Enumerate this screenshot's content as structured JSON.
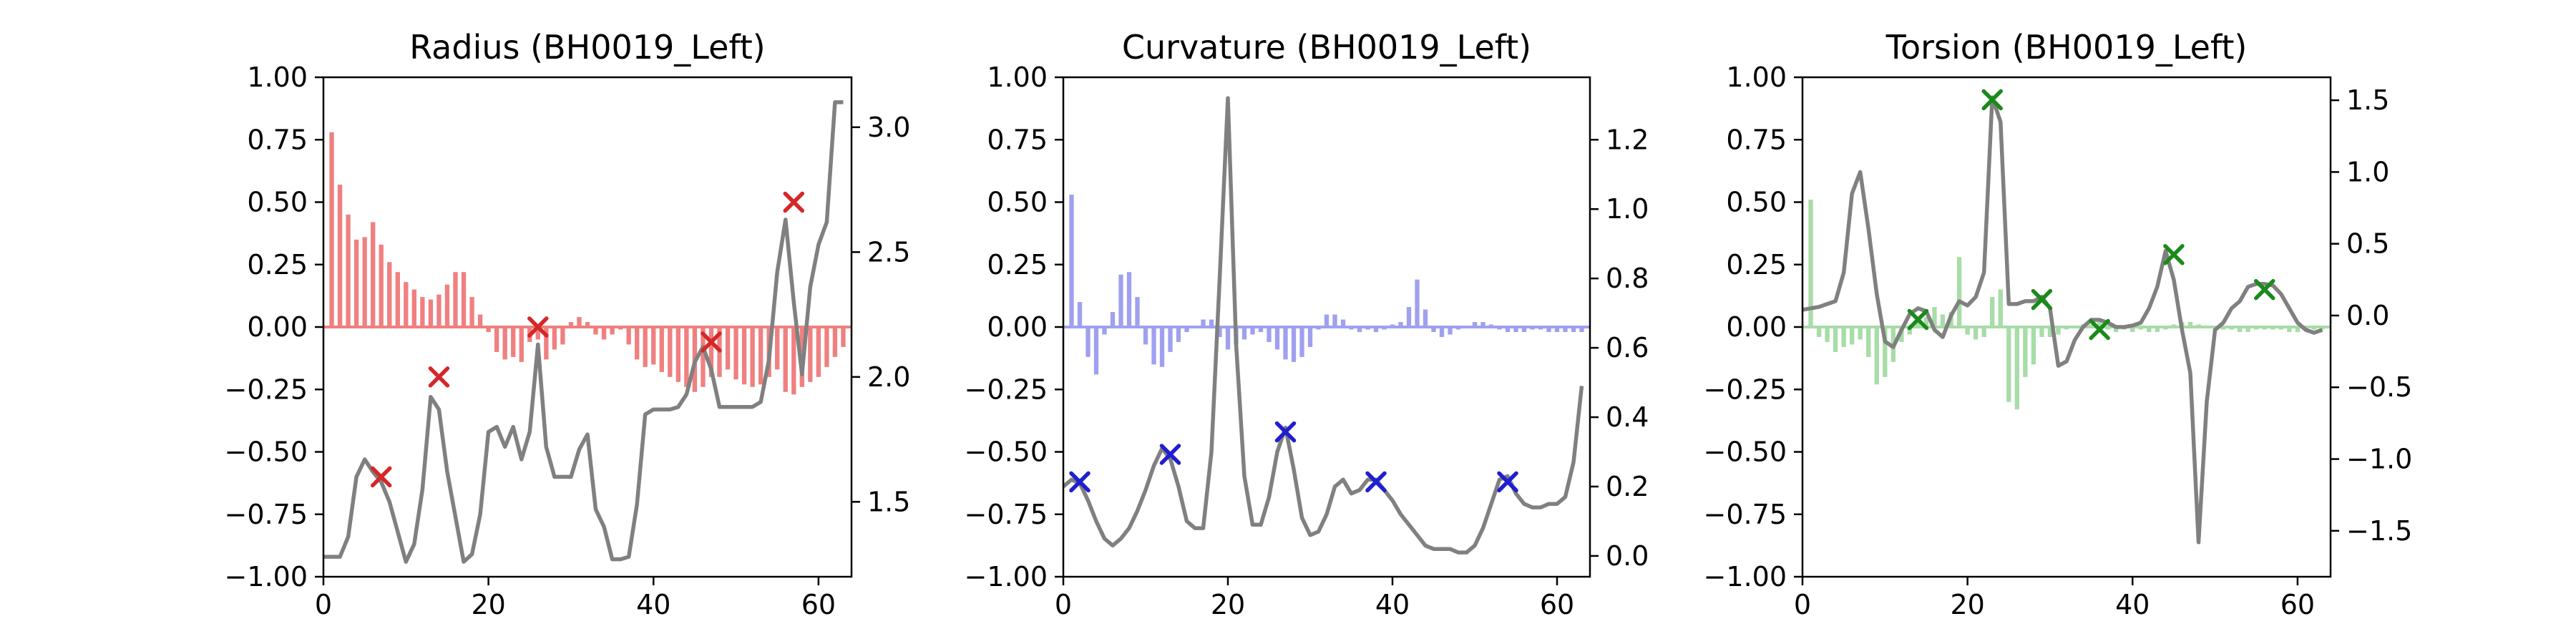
{
  "chart_data": [
    {
      "type": "bar",
      "title": "Radius (BH0019_Left)",
      "xlabel": "",
      "ylabel": "",
      "xlim": [
        0,
        64
      ],
      "ylim": [
        -1,
        1
      ],
      "y2lim": [
        1.2,
        3.2
      ],
      "grid": false,
      "x_ticks": [
        0,
        20,
        40,
        60
      ],
      "y_ticks": [
        -1.0,
        -0.75,
        -0.5,
        -0.25,
        0.0,
        0.25,
        0.5,
        0.75,
        1.0
      ],
      "y_tick_labels": [
        "−1.00",
        "−0.75",
        "−0.50",
        "−0.25",
        "0.00",
        "0.25",
        "0.50",
        "0.75",
        "1.00"
      ],
      "y2_ticks": [
        1.5,
        2.0,
        2.5,
        3.0
      ],
      "y2_tick_labels": [
        "1.5",
        "2.0",
        "2.5",
        "3.0"
      ],
      "bar_color": "#f08080",
      "bars": {
        "x": [
          1,
          2,
          3,
          4,
          5,
          6,
          7,
          8,
          9,
          10,
          11,
          12,
          13,
          14,
          15,
          16,
          17,
          18,
          19,
          20,
          21,
          22,
          23,
          24,
          25,
          26,
          27,
          28,
          29,
          30,
          31,
          32,
          33,
          34,
          35,
          36,
          37,
          38,
          39,
          40,
          41,
          42,
          43,
          44,
          45,
          46,
          47,
          48,
          49,
          50,
          51,
          52,
          53,
          54,
          55,
          56,
          57,
          58,
          59,
          60,
          61,
          62,
          63
        ],
        "values": [
          0.78,
          0.57,
          0.45,
          0.35,
          0.36,
          0.42,
          0.33,
          0.26,
          0.22,
          0.18,
          0.15,
          0.12,
          0.11,
          0.13,
          0.17,
          0.22,
          0.22,
          0.12,
          0.05,
          -0.02,
          -0.1,
          -0.13,
          -0.12,
          -0.14,
          -0.06,
          -0.05,
          -0.13,
          -0.09,
          -0.07,
          0.02,
          0.04,
          0.02,
          -0.03,
          -0.05,
          -0.03,
          -0.01,
          -0.07,
          -0.13,
          -0.16,
          -0.15,
          -0.18,
          -0.2,
          -0.22,
          -0.24,
          -0.26,
          -0.24,
          -0.2,
          -0.2,
          -0.17,
          -0.21,
          -0.23,
          -0.24,
          -0.23,
          -0.2,
          -0.17,
          -0.26,
          -0.27,
          -0.24,
          -0.22,
          -0.2,
          -0.16,
          -0.12,
          -0.08
        ]
      },
      "line_color": "#808080",
      "line": {
        "x": [
          0,
          1,
          2,
          3,
          4,
          5,
          6,
          7,
          8,
          9,
          10,
          11,
          12,
          13,
          14,
          15,
          16,
          17,
          18,
          19,
          20,
          21,
          22,
          23,
          24,
          25,
          26,
          27,
          28,
          29,
          30,
          31,
          32,
          33,
          34,
          35,
          36,
          37,
          38,
          39,
          40,
          41,
          42,
          43,
          44,
          45,
          46,
          47,
          48,
          49,
          50,
          51,
          52,
          53,
          54,
          55,
          56,
          57,
          58,
          59,
          60,
          61,
          62,
          63
        ],
        "y": [
          1.28,
          1.28,
          1.28,
          1.36,
          1.6,
          1.67,
          1.62,
          1.58,
          1.5,
          1.38,
          1.26,
          1.33,
          1.55,
          1.92,
          1.87,
          1.62,
          1.44,
          1.26,
          1.29,
          1.45,
          1.78,
          1.8,
          1.72,
          1.8,
          1.67,
          1.78,
          2.13,
          1.72,
          1.6,
          1.6,
          1.6,
          1.71,
          1.77,
          1.47,
          1.4,
          1.27,
          1.27,
          1.28,
          1.49,
          1.85,
          1.87,
          1.87,
          1.87,
          1.88,
          1.93,
          2.06,
          2.12,
          2.03,
          1.88,
          1.88,
          1.88,
          1.88,
          1.88,
          1.9,
          2.07,
          2.42,
          2.63,
          2.3,
          2.01,
          2.36,
          2.53,
          2.62,
          3.1,
          3.1
        ]
      },
      "markers": {
        "color": "#d62728",
        "x": [
          7,
          14,
          26,
          47,
          57
        ],
        "y": [
          -0.6,
          -0.2,
          0.0,
          -0.06,
          0.5
        ]
      }
    },
    {
      "type": "bar",
      "title": "Curvature (BH0019_Left)",
      "xlabel": "",
      "ylabel": "",
      "xlim": [
        0,
        64
      ],
      "ylim": [
        -1,
        1
      ],
      "y2lim": [
        -0.06,
        1.38
      ],
      "grid": false,
      "x_ticks": [
        0,
        20,
        40,
        60
      ],
      "y_ticks": [
        -1.0,
        -0.75,
        -0.5,
        -0.25,
        0.0,
        0.25,
        0.5,
        0.75,
        1.0
      ],
      "y_tick_labels": [
        "−1.00",
        "−0.75",
        "−0.50",
        "−0.25",
        "0.00",
        "0.25",
        "0.50",
        "0.75",
        "1.00"
      ],
      "y2_ticks": [
        0.0,
        0.2,
        0.4,
        0.6,
        0.8,
        1.0,
        1.2
      ],
      "y2_tick_labels": [
        "0.0",
        "0.2",
        "0.4",
        "0.6",
        "0.8",
        "1.0",
        "1.2"
      ],
      "bar_color": "#a0a0f0",
      "bars": {
        "x": [
          1,
          2,
          3,
          4,
          5,
          6,
          7,
          8,
          9,
          10,
          11,
          12,
          13,
          14,
          15,
          16,
          17,
          18,
          19,
          20,
          21,
          22,
          23,
          24,
          25,
          26,
          27,
          28,
          29,
          30,
          31,
          32,
          33,
          34,
          35,
          36,
          37,
          38,
          39,
          40,
          41,
          42,
          43,
          44,
          45,
          46,
          47,
          48,
          49,
          50,
          51,
          52,
          53,
          54,
          55,
          56,
          57,
          58,
          59,
          60,
          61,
          62,
          63
        ],
        "values": [
          0.53,
          0.1,
          -0.12,
          -0.19,
          -0.03,
          0.06,
          0.21,
          0.22,
          0.12,
          -0.07,
          -0.15,
          -0.16,
          -0.1,
          -0.06,
          -0.02,
          0.0,
          0.03,
          0.03,
          -0.04,
          -0.09,
          -0.07,
          -0.05,
          -0.03,
          -0.02,
          -0.06,
          -0.09,
          -0.13,
          -0.14,
          -0.12,
          -0.08,
          -0.01,
          0.05,
          0.05,
          0.03,
          -0.01,
          -0.02,
          -0.01,
          -0.02,
          -0.01,
          0.01,
          0.02,
          0.08,
          0.19,
          0.07,
          -0.02,
          -0.04,
          -0.03,
          -0.01,
          0.0,
          0.02,
          0.02,
          0.01,
          -0.01,
          -0.02,
          -0.02,
          -0.02,
          -0.01,
          -0.01,
          -0.02,
          -0.02,
          -0.02,
          -0.02,
          -0.02
        ]
      },
      "line_color": "#808080",
      "line": {
        "x": [
          0,
          1,
          2,
          3,
          4,
          5,
          6,
          7,
          8,
          9,
          10,
          11,
          12,
          13,
          14,
          15,
          16,
          17,
          18,
          19,
          20,
          21,
          22,
          23,
          24,
          25,
          26,
          27,
          28,
          29,
          30,
          31,
          32,
          33,
          34,
          35,
          36,
          37,
          38,
          39,
          40,
          41,
          42,
          43,
          44,
          45,
          46,
          47,
          48,
          49,
          50,
          51,
          52,
          53,
          54,
          55,
          56,
          57,
          58,
          59,
          60,
          61,
          62,
          63
        ],
        "y": [
          0.2,
          0.22,
          0.21,
          0.16,
          0.1,
          0.05,
          0.03,
          0.05,
          0.08,
          0.13,
          0.19,
          0.26,
          0.31,
          0.28,
          0.2,
          0.1,
          0.08,
          0.08,
          0.3,
          0.8,
          1.32,
          0.61,
          0.23,
          0.09,
          0.09,
          0.17,
          0.3,
          0.37,
          0.25,
          0.11,
          0.06,
          0.07,
          0.12,
          0.2,
          0.22,
          0.18,
          0.19,
          0.22,
          0.22,
          0.19,
          0.16,
          0.12,
          0.09,
          0.06,
          0.03,
          0.02,
          0.02,
          0.02,
          0.01,
          0.01,
          0.03,
          0.08,
          0.15,
          0.22,
          0.23,
          0.18,
          0.15,
          0.14,
          0.14,
          0.15,
          0.15,
          0.17,
          0.27,
          0.49
        ]
      },
      "markers": {
        "color": "#1f1fd0",
        "x": [
          2,
          13,
          27,
          38,
          54
        ],
        "y": [
          -0.62,
          -0.51,
          -0.42,
          -0.62,
          -0.62
        ]
      }
    },
    {
      "type": "bar",
      "title": "Torsion (BH0019_Left)",
      "xlabel": "",
      "ylabel": "",
      "xlim": [
        0,
        64
      ],
      "ylim": [
        -1,
        1
      ],
      "y2lim": [
        -1.82,
        1.66
      ],
      "grid": false,
      "x_ticks": [
        0,
        20,
        40,
        60
      ],
      "y_ticks": [
        -1.0,
        -0.75,
        -0.5,
        -0.25,
        0.0,
        0.25,
        0.5,
        0.75,
        1.0
      ],
      "y_tick_labels": [
        "−1.00",
        "−0.75",
        "−0.50",
        "−0.25",
        "0.00",
        "0.25",
        "0.50",
        "0.75",
        "1.00"
      ],
      "y2_ticks": [
        -1.5,
        -1.0,
        -0.5,
        0.0,
        0.5,
        1.0,
        1.5
      ],
      "y2_tick_labels": [
        "−1.5",
        "−1.0",
        "−0.5",
        "0.0",
        "0.5",
        "1.0",
        "1.5"
      ],
      "bar_color": "#a8dca8",
      "bars": {
        "x": [
          1,
          2,
          3,
          4,
          5,
          6,
          7,
          8,
          9,
          10,
          11,
          12,
          13,
          14,
          15,
          16,
          17,
          18,
          19,
          20,
          21,
          22,
          23,
          24,
          25,
          26,
          27,
          28,
          29,
          30,
          31,
          32,
          33,
          34,
          35,
          36,
          37,
          38,
          39,
          40,
          41,
          42,
          43,
          44,
          45,
          46,
          47,
          48,
          49,
          50,
          51,
          52,
          53,
          54,
          55,
          56,
          57,
          58,
          59,
          60,
          61,
          62,
          63
        ],
        "values": [
          0.51,
          -0.04,
          -0.06,
          -0.1,
          -0.08,
          -0.07,
          -0.05,
          -0.12,
          -0.23,
          -0.2,
          -0.14,
          -0.06,
          -0.03,
          0.03,
          0.04,
          0.08,
          0.05,
          0.06,
          0.28,
          -0.03,
          -0.05,
          -0.04,
          0.12,
          0.15,
          -0.3,
          -0.33,
          -0.2,
          -0.15,
          -0.04,
          -0.04,
          -0.03,
          -0.01,
          0.0,
          0.01,
          0.01,
          0.02,
          -0.01,
          -0.02,
          -0.01,
          -0.02,
          -0.01,
          -0.02,
          -0.02,
          -0.01,
          0.01,
          0.02,
          0.02,
          0.01,
          0.0,
          -0.01,
          -0.01,
          -0.01,
          -0.02,
          -0.02,
          -0.01,
          -0.01,
          -0.01,
          -0.01,
          -0.02,
          -0.02,
          -0.01,
          -0.01,
          -0.01
        ]
      },
      "line_color": "#808080",
      "line": {
        "x": [
          0,
          1,
          2,
          3,
          4,
          5,
          6,
          7,
          8,
          9,
          10,
          11,
          12,
          13,
          14,
          15,
          16,
          17,
          18,
          19,
          20,
          21,
          22,
          23,
          24,
          25,
          26,
          27,
          28,
          29,
          30,
          31,
          32,
          33,
          34,
          35,
          36,
          37,
          38,
          39,
          40,
          41,
          42,
          43,
          44,
          45,
          46,
          47,
          48,
          49,
          50,
          51,
          52,
          53,
          54,
          55,
          56,
          57,
          58,
          59,
          60,
          61,
          62,
          63
        ],
        "y": [
          0.04,
          0.05,
          0.06,
          0.08,
          0.1,
          0.3,
          0.85,
          1.0,
          0.6,
          0.15,
          -0.18,
          -0.22,
          -0.1,
          0.01,
          0.05,
          0.03,
          -0.1,
          -0.15,
          0.0,
          0.1,
          0.07,
          0.13,
          0.3,
          1.52,
          1.35,
          0.08,
          0.08,
          0.1,
          0.1,
          0.13,
          0.05,
          -0.35,
          -0.32,
          -0.17,
          -0.08,
          -0.03,
          -0.03,
          -0.05,
          -0.08,
          -0.08,
          -0.07,
          -0.05,
          0.05,
          0.2,
          0.45,
          0.25,
          -0.1,
          -0.4,
          -1.58,
          -0.6,
          -0.1,
          -0.05,
          0.05,
          0.1,
          0.2,
          0.22,
          0.22,
          0.21,
          0.15,
          0.05,
          -0.05,
          -0.1,
          -0.12,
          -0.1
        ]
      },
      "markers": {
        "color": "#1a8a1a",
        "x": [
          14,
          23,
          29,
          36,
          45,
          56
        ],
        "y": [
          0.03,
          0.91,
          0.11,
          -0.01,
          0.29,
          0.15
        ]
      }
    }
  ]
}
